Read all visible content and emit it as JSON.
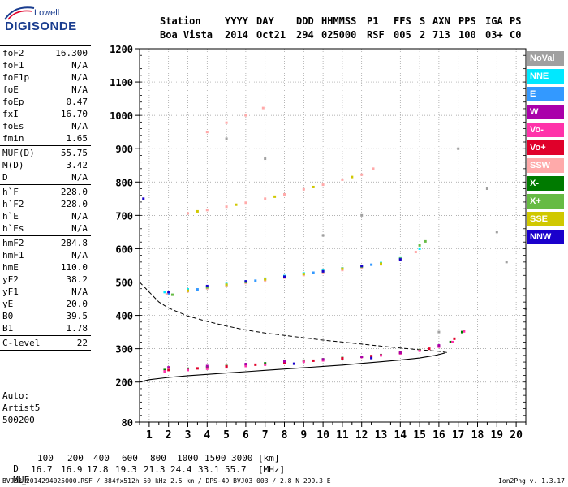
{
  "logo": {
    "name": "Lowell",
    "brand": "DIGISONDE"
  },
  "header": {
    "columns": [
      "Station",
      "YYYY",
      "DAY",
      "DDD",
      "HHMMSS",
      "P1",
      "FFS",
      "S",
      "AXN",
      "PPS",
      "IGA",
      "PS"
    ],
    "values": [
      "Boa Vista",
      "2014",
      "Oct21",
      "294",
      "025000",
      "RSF",
      "005",
      "2",
      "713",
      "100",
      "03+",
      "C0"
    ]
  },
  "params": {
    "group1": [
      {
        "label": "foF2",
        "value": "16.300"
      },
      {
        "label": "foF1",
        "value": "N/A"
      },
      {
        "label": "foF1p",
        "value": "N/A"
      },
      {
        "label": "foE",
        "value": "N/A"
      },
      {
        "label": "foEp",
        "value": "0.47"
      },
      {
        "label": "fxI",
        "value": "16.70"
      },
      {
        "label": "foEs",
        "value": "N/A"
      },
      {
        "label": "fmin",
        "value": "1.65"
      }
    ],
    "group2": [
      {
        "label": "MUF(D)",
        "value": "55.75"
      },
      {
        "label": "M(D)",
        "value": "3.42"
      },
      {
        "label": "D",
        "value": "N/A"
      }
    ],
    "group3": [
      {
        "label": "h`F",
        "value": "228.0"
      },
      {
        "label": "h`F2",
        "value": "228.0"
      },
      {
        "label": "h`E",
        "value": "N/A"
      },
      {
        "label": "h`Es",
        "value": "N/A"
      }
    ],
    "group4": [
      {
        "label": "hmF2",
        "value": "284.8"
      },
      {
        "label": "hmF1",
        "value": "N/A"
      },
      {
        "label": "hmE",
        "value": "110.0"
      },
      {
        "label": "yF2",
        "value": "38.2"
      },
      {
        "label": "yF1",
        "value": "N/A"
      },
      {
        "label": "yE",
        "value": "20.0"
      },
      {
        "label": "B0",
        "value": "39.5"
      },
      {
        "label": "B1",
        "value": "1.78"
      }
    ],
    "group5": [
      {
        "label": "C-level",
        "value": "22"
      }
    ],
    "auto_lines": [
      "Auto:",
      "Artist5",
      "500200"
    ]
  },
  "legend": [
    {
      "label": "NoVal",
      "color": "#a0a0a0"
    },
    {
      "label": "NNE",
      "color": "#00e8ff"
    },
    {
      "label": "E",
      "color": "#3399ff"
    },
    {
      "label": "W",
      "color": "#aa00aa"
    },
    {
      "label": "Vo-",
      "color": "#ff33aa"
    },
    {
      "label": "Vo+",
      "color": "#e0002a"
    },
    {
      "label": "SSW",
      "color": "#ffaaaa"
    },
    {
      "label": "X-",
      "color": "#007a00"
    },
    {
      "label": "X+",
      "color": "#66bb44"
    },
    {
      "label": "SSE",
      "color": "#d0c800"
    },
    {
      "label": "NNW",
      "color": "#1a00cc"
    }
  ],
  "muf_table": {
    "d_label": "D",
    "d_values": [
      "100",
      "200",
      "400",
      "600",
      "800",
      "1000",
      "1500",
      "3000"
    ],
    "d_unit": "[km]",
    "muf_label": "MUF",
    "muf_values": [
      "16.7",
      "16.9",
      "17.8",
      "19.3",
      "21.3",
      "24.4",
      "33.1",
      "55.7"
    ],
    "muf_unit": "[MHz]"
  },
  "footer": {
    "left": "BVJ03_2014294025000.RSF / 384fx512h 50 kHz 2.5 km / DPS-4D BVJ03 003 / 2.8 N 299.3 E",
    "right": "Ion2Png v. 1.3.17"
  },
  "chart_data": {
    "type": "scatter",
    "xlim": [
      0.5,
      20.5
    ],
    "ylim": [
      80,
      1200
    ],
    "x_ticks": [
      1,
      2,
      3,
      4,
      5,
      6,
      7,
      8,
      9,
      10,
      11,
      12,
      13,
      14,
      15,
      16,
      17,
      18,
      19,
      20
    ],
    "y_ticks": [
      80,
      200,
      300,
      400,
      500,
      600,
      700,
      800,
      900,
      1000,
      1100,
      1200
    ],
    "x_minor_step": 0.5,
    "y_minor_step": 20,
    "grid": true,
    "series": [
      {
        "name": "X-",
        "color": "#007a00",
        "points": [
          [
            1.8,
            236
          ],
          [
            3,
            240
          ],
          [
            4,
            244
          ],
          [
            5,
            248
          ],
          [
            6,
            252
          ],
          [
            7,
            256
          ],
          [
            8,
            260
          ],
          [
            9,
            264
          ],
          [
            10,
            268
          ],
          [
            11,
            272
          ],
          [
            12,
            276
          ],
          [
            13,
            281
          ],
          [
            14,
            287
          ],
          [
            15,
            296
          ],
          [
            16,
            308
          ],
          [
            16.6,
            320
          ],
          [
            17.2,
            350
          ]
        ]
      },
      {
        "name": "Vo-",
        "color": "#ff33aa",
        "points": [
          [
            1.8,
            232
          ],
          [
            3,
            236
          ],
          [
            4,
            240
          ],
          [
            5,
            244
          ],
          [
            6,
            248
          ],
          [
            7,
            252
          ],
          [
            8,
            257
          ],
          [
            9,
            261
          ],
          [
            10,
            265
          ],
          [
            11,
            270
          ],
          [
            12,
            275
          ],
          [
            13,
            280
          ],
          [
            14,
            286
          ],
          [
            15,
            294
          ],
          [
            16,
            306
          ],
          [
            16.7,
            320
          ],
          [
            17.3,
            352
          ]
        ]
      },
      {
        "name": "Vo+",
        "color": "#e0002a",
        "points": [
          [
            2,
            236
          ],
          [
            3.5,
            241
          ],
          [
            5,
            247
          ],
          [
            6.5,
            252
          ],
          [
            8,
            259
          ],
          [
            9.5,
            264
          ],
          [
            11,
            271
          ],
          [
            12.5,
            278
          ],
          [
            14,
            288
          ],
          [
            15.5,
            300
          ],
          [
            16.8,
            330
          ]
        ]
      },
      {
        "name": "W",
        "color": "#aa00aa",
        "points": [
          [
            2,
            244
          ],
          [
            4,
            248
          ],
          [
            6,
            254
          ],
          [
            8,
            262
          ],
          [
            10,
            268
          ],
          [
            12,
            276
          ],
          [
            14,
            288
          ],
          [
            16,
            310
          ]
        ]
      },
      {
        "name": "NNE",
        "color": "#00e8ff",
        "points": [
          [
            1.8,
            470
          ],
          [
            3,
            478
          ],
          [
            4,
            486
          ],
          [
            5,
            494
          ],
          [
            6,
            502
          ],
          [
            7,
            510
          ],
          [
            8,
            518
          ],
          [
            9,
            526
          ],
          [
            10,
            534
          ],
          [
            11,
            541
          ],
          [
            12,
            548
          ],
          [
            13,
            557
          ],
          [
            14,
            571
          ],
          [
            15,
            600
          ]
        ]
      },
      {
        "name": "E",
        "color": "#3399ff",
        "points": [
          [
            2,
            466
          ],
          [
            3.5,
            478
          ],
          [
            5,
            490
          ],
          [
            6.5,
            504
          ],
          [
            8,
            516
          ],
          [
            9.5,
            528
          ],
          [
            11,
            540
          ],
          [
            12.5,
            552
          ],
          [
            14,
            570
          ]
        ]
      },
      {
        "name": "SSW",
        "color": "#ffaaaa",
        "points": [
          [
            1.9,
            464
          ],
          [
            3,
            472
          ],
          [
            4,
            481
          ],
          [
            5,
            489
          ],
          [
            6,
            497
          ],
          [
            7,
            505
          ],
          [
            8,
            513
          ],
          [
            9,
            521
          ],
          [
            10,
            529
          ],
          [
            11,
            536
          ],
          [
            12,
            544
          ],
          [
            13,
            553
          ],
          [
            14,
            566
          ],
          [
            14.8,
            590
          ],
          [
            3,
            706
          ],
          [
            4,
            716
          ],
          [
            5,
            726
          ],
          [
            6,
            738
          ],
          [
            7,
            750
          ],
          [
            8,
            763
          ],
          [
            9,
            778
          ],
          [
            10,
            792
          ],
          [
            11,
            807
          ],
          [
            12,
            822
          ],
          [
            12.6,
            840
          ],
          [
            4,
            950
          ],
          [
            5,
            978
          ],
          [
            6,
            1000
          ],
          [
            6.9,
            1022
          ]
        ]
      },
      {
        "name": "X+",
        "color": "#66bb44",
        "points": [
          [
            2.2,
            462
          ],
          [
            4,
            484
          ],
          [
            6,
            500
          ],
          [
            8,
            516
          ],
          [
            10,
            532
          ],
          [
            12,
            546
          ],
          [
            14,
            570
          ],
          [
            15,
            610
          ],
          [
            15.3,
            622
          ]
        ]
      },
      {
        "name": "SSE",
        "color": "#d0c800",
        "points": [
          [
            3,
            474
          ],
          [
            5,
            492
          ],
          [
            7,
            508
          ],
          [
            9,
            524
          ],
          [
            11,
            540
          ],
          [
            13,
            555
          ],
          [
            3.5,
            712
          ],
          [
            5.5,
            732
          ],
          [
            7.5,
            756
          ],
          [
            9.5,
            785
          ],
          [
            11.5,
            815
          ]
        ]
      },
      {
        "name": "NNW",
        "color": "#1a00cc",
        "points": [
          [
            0.7,
            750
          ],
          [
            2,
            470
          ],
          [
            4,
            488
          ],
          [
            6,
            502
          ],
          [
            8,
            516
          ],
          [
            10,
            532
          ],
          [
            12,
            548
          ],
          [
            14,
            568
          ],
          [
            8.5,
            255
          ],
          [
            12.5,
            272
          ]
        ]
      },
      {
        "name": "NoVal",
        "color": "#a0a0a0",
        "points": [
          [
            5,
            930
          ],
          [
            7,
            870
          ],
          [
            10,
            640
          ],
          [
            12,
            700
          ],
          [
            16,
            350
          ],
          [
            17,
            900
          ],
          [
            18.5,
            780
          ],
          [
            19,
            650
          ],
          [
            19.5,
            560
          ],
          [
            20.5,
            420
          ]
        ]
      }
    ],
    "profile_curve": {
      "style": "solid",
      "color": "#000000",
      "points": [
        [
          0.5,
          200
        ],
        [
          1,
          207
        ],
        [
          2,
          214
        ],
        [
          3,
          219
        ],
        [
          4,
          223
        ],
        [
          5,
          227
        ],
        [
          6,
          231
        ],
        [
          7,
          235
        ],
        [
          8,
          239
        ],
        [
          9,
          243
        ],
        [
          10,
          247
        ],
        [
          11,
          251
        ],
        [
          12,
          256
        ],
        [
          13,
          261
        ],
        [
          14,
          266
        ],
        [
          15,
          272
        ],
        [
          15.8,
          280
        ],
        [
          16.3,
          287
        ]
      ]
    },
    "muf_curve": {
      "style": "dashed",
      "color": "#000000",
      "points": [
        [
          0.5,
          500
        ],
        [
          1,
          470
        ],
        [
          1.5,
          440
        ],
        [
          2,
          422
        ],
        [
          3,
          398
        ],
        [
          4,
          382
        ],
        [
          5,
          368
        ],
        [
          6,
          356
        ],
        [
          7,
          347
        ],
        [
          8,
          340
        ],
        [
          9,
          333
        ],
        [
          10,
          326
        ],
        [
          11,
          320
        ],
        [
          12,
          314
        ],
        [
          13,
          308
        ],
        [
          14,
          302
        ],
        [
          15,
          297
        ],
        [
          16,
          292
        ],
        [
          16.5,
          288
        ]
      ]
    }
  }
}
